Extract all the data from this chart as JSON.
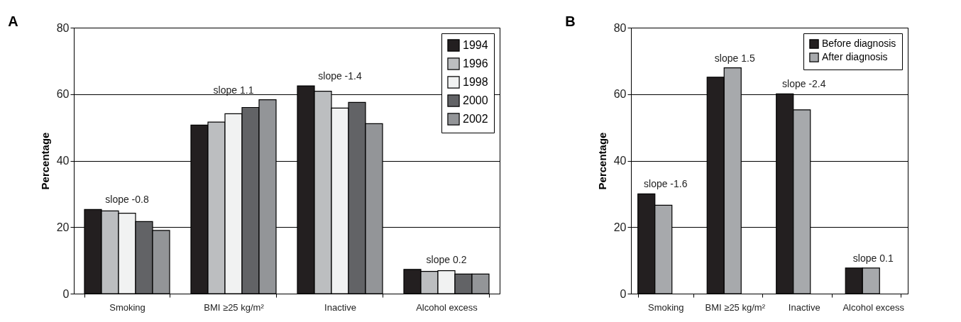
{
  "chart_data": [
    {
      "type": "bar",
      "title": "A",
      "ylabel": "Percentage",
      "categories": [
        "Smoking",
        "BMI ≥25 kg/m²",
        "Inactive",
        "Alcohol excess"
      ],
      "series": [
        {
          "name": "1994",
          "color": "#231f20",
          "values": [
            25.3,
            50.7,
            62.5,
            7.3
          ]
        },
        {
          "name": "1996",
          "color": "#bcbec0",
          "values": [
            24.9,
            51.6,
            60.9,
            6.7
          ]
        },
        {
          "name": "1998",
          "color": "#f1f2f2",
          "values": [
            24.2,
            54.1,
            55.8,
            6.9
          ]
        },
        {
          "name": "2000",
          "color": "#626366",
          "values": [
            21.7,
            56.0,
            57.5,
            5.9
          ]
        },
        {
          "name": "2002",
          "color": "#939598",
          "values": [
            19.0,
            58.3,
            51.1,
            5.9
          ]
        }
      ],
      "ylim": [
        0,
        80
      ],
      "yticks": [
        0,
        20,
        40,
        60,
        80
      ],
      "grid": "y",
      "legend": "top right",
      "annotations": [
        "slope -0.8",
        "slope 1.1",
        "slope -1.4",
        "slope 0.2"
      ]
    },
    {
      "type": "bar",
      "title": "B",
      "ylabel": "Percentage",
      "categories": [
        "Smoking",
        "BMI ≥25 kg/m²",
        "Inactive",
        "Alcohol excess"
      ],
      "series": [
        {
          "name": "Before diagnosis",
          "color": "#231f20",
          "values": [
            30.0,
            65.1,
            60.1,
            7.7
          ]
        },
        {
          "name": "After diagnosis",
          "color": "#a7a9ac",
          "values": [
            26.6,
            67.9,
            55.3,
            7.7
          ]
        }
      ],
      "ylim": [
        0,
        80
      ],
      "yticks": [
        0,
        20,
        40,
        60,
        80
      ],
      "grid": "y",
      "legend": "top right",
      "annotations": [
        "slope -1.6",
        "slope 1.5",
        "slope -2.4",
        "slope 0.1"
      ]
    }
  ]
}
